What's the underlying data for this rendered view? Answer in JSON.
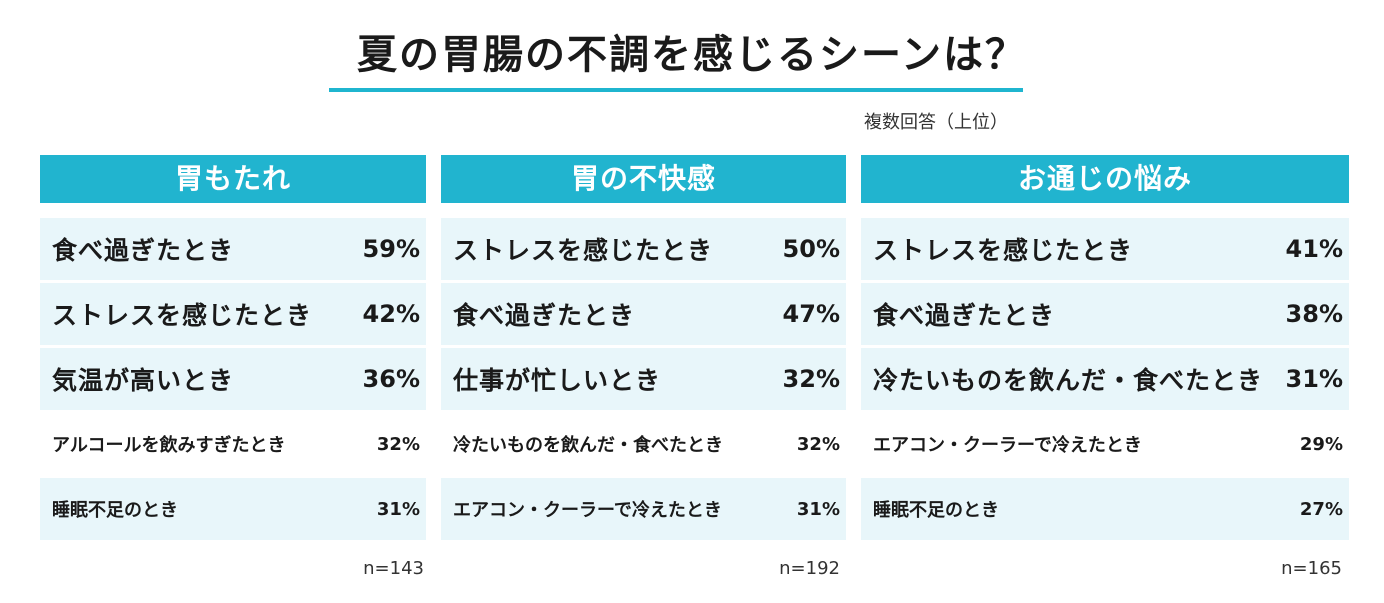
{
  "title": "夏の胃腸の不調を感じるシーンは？",
  "note": "複数回答（上位）",
  "colors": {
    "header": "#21b4cf",
    "row_bg": "#e8f6fa",
    "accent_line": "#1fb5cf"
  },
  "chart_data": [
    {
      "type": "table",
      "title": "胃もたれ",
      "n": "n=143",
      "rows": [
        {
          "label": "食べ過ぎたとき",
          "value": 59,
          "display": "59%"
        },
        {
          "label": "ストレスを感じたとき",
          "value": 42,
          "display": "42%"
        },
        {
          "label": "気温が高いとき",
          "value": 36,
          "display": "36%"
        },
        {
          "label": "アルコールを飲みすぎたとき",
          "value": 32,
          "display": "32%"
        },
        {
          "label": "睡眠不足のとき",
          "value": 31,
          "display": "31%"
        }
      ]
    },
    {
      "type": "table",
      "title": "胃の不快感",
      "n": "n=192",
      "rows": [
        {
          "label": "ストレスを感じたとき",
          "value": 50,
          "display": "50%"
        },
        {
          "label": "食べ過ぎたとき",
          "value": 47,
          "display": "47%"
        },
        {
          "label": "仕事が忙しいとき",
          "value": 32,
          "display": "32%"
        },
        {
          "label": "冷たいものを飲んだ・食べたとき",
          "value": 32,
          "display": "32%"
        },
        {
          "label": "エアコン・クーラーで冷えたとき",
          "value": 31,
          "display": "31%"
        }
      ]
    },
    {
      "type": "table",
      "title": "お通じの悩み",
      "n": "n=165",
      "rows": [
        {
          "label": "ストレスを感じたとき",
          "value": 41,
          "display": "41%"
        },
        {
          "label": "食べ過ぎたとき",
          "value": 38,
          "display": "38%"
        },
        {
          "label": "冷たいものを飲んだ・食べたとき",
          "value": 31,
          "display": "31%"
        },
        {
          "label": "エアコン・クーラーで冷えたとき",
          "value": 29,
          "display": "29%"
        },
        {
          "label": "睡眠不足のとき",
          "value": 27,
          "display": "27%"
        }
      ]
    }
  ]
}
